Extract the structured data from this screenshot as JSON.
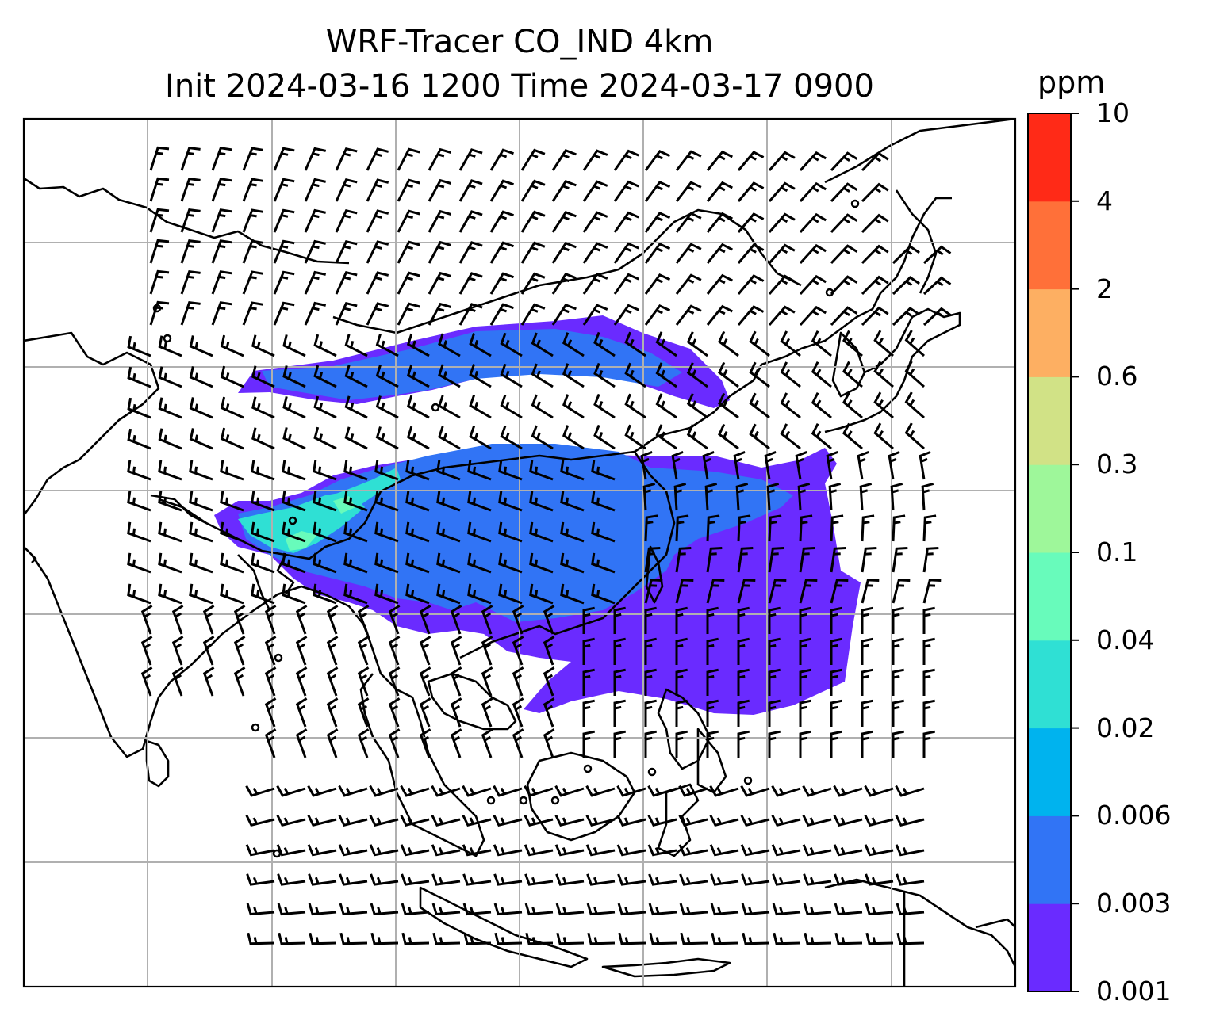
{
  "title": {
    "line1": "WRF-Tracer CO_IND 4km",
    "line2": "Init 2024-03-16 1200 Time 2024-03-17 0900"
  },
  "colorbar": {
    "unit": "ppm",
    "ticks": [
      "0.001",
      "0.003",
      "0.006",
      "0.02",
      "0.04",
      "0.1",
      "0.3",
      "0.6",
      "2",
      "4",
      "10"
    ],
    "colors": [
      "#6a2bff",
      "#3174f5",
      "#00b3ee",
      "#2fe0d4",
      "#68fbbb",
      "#9ef79a",
      "#d1e286",
      "#fdaf62",
      "#ff7039",
      "#ff2a17"
    ]
  },
  "map": {
    "gridline_color": "#b0b0b0",
    "coastline_color": "#000000",
    "barb_color": "#000000",
    "wind_barbs": true,
    "gridlines": true
  }
}
